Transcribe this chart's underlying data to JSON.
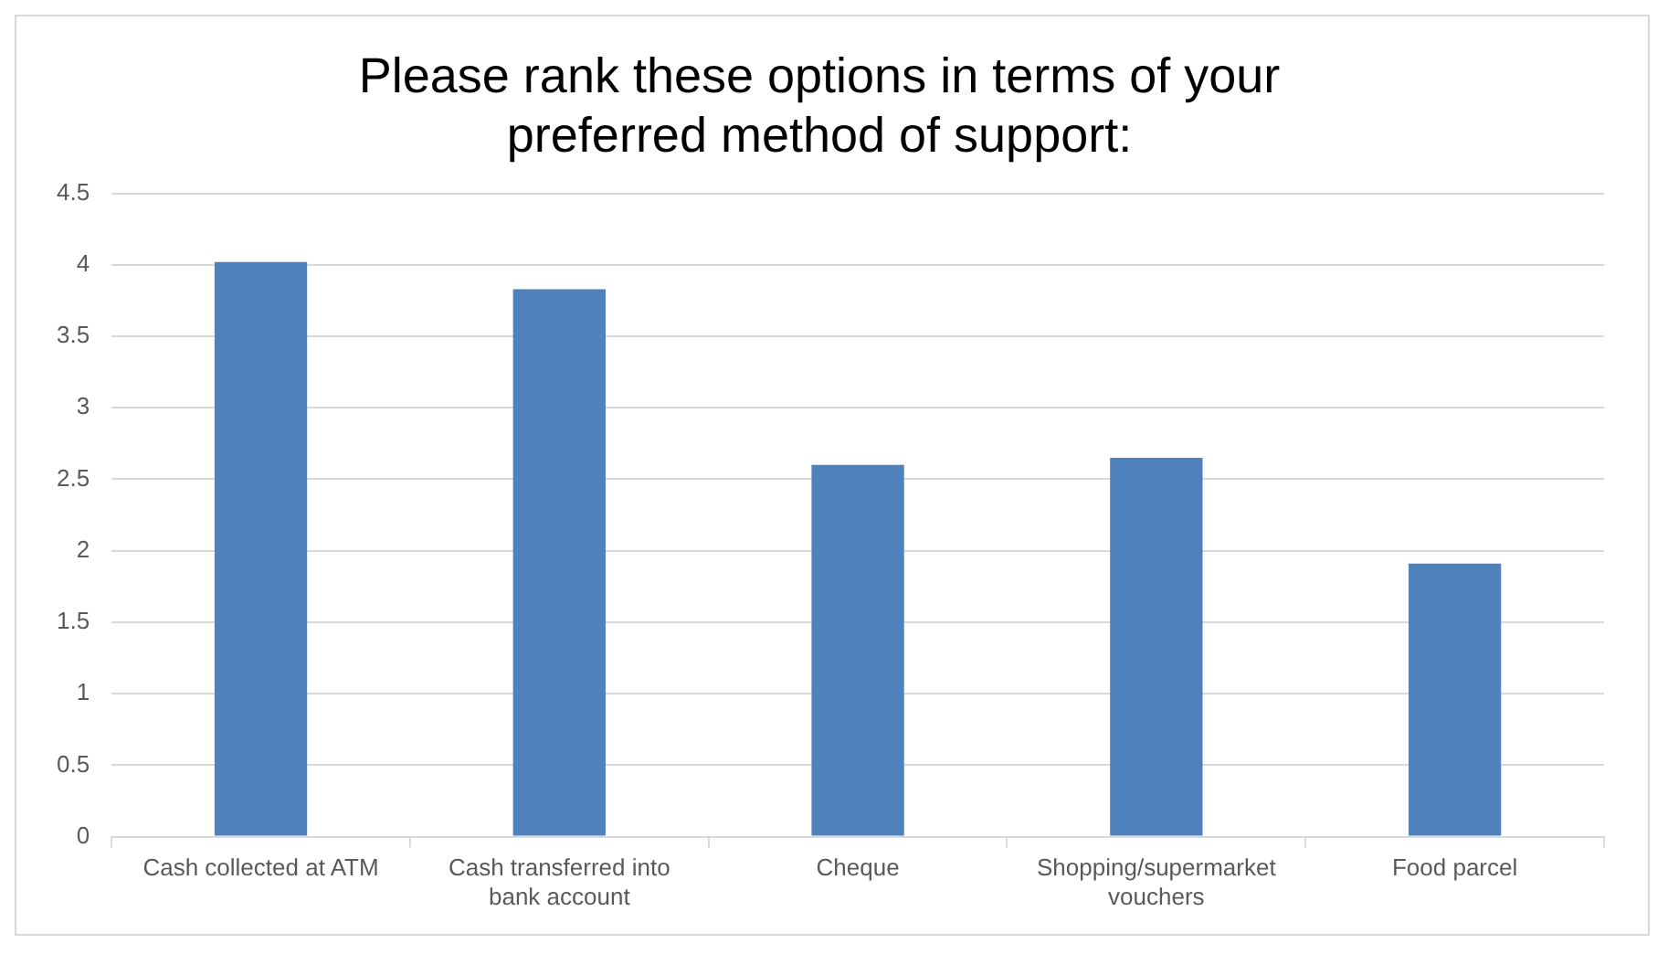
{
  "chart_data": {
    "type": "bar",
    "title": "Please rank these options in terms of your preferred method of support:",
    "categories": [
      "Cash collected at ATM",
      "Cash transferred into bank account",
      "Cheque",
      "Shopping/supermarket vouchers",
      "Food parcel"
    ],
    "values": [
      4.02,
      3.83,
      2.6,
      2.65,
      1.91
    ],
    "color": "#4f81bd",
    "ylim": [
      0,
      4.5
    ],
    "yticks": [
      0,
      0.5,
      1,
      1.5,
      2,
      2.5,
      3,
      3.5,
      4,
      4.5
    ],
    "grid": "y",
    "legend": false
  }
}
